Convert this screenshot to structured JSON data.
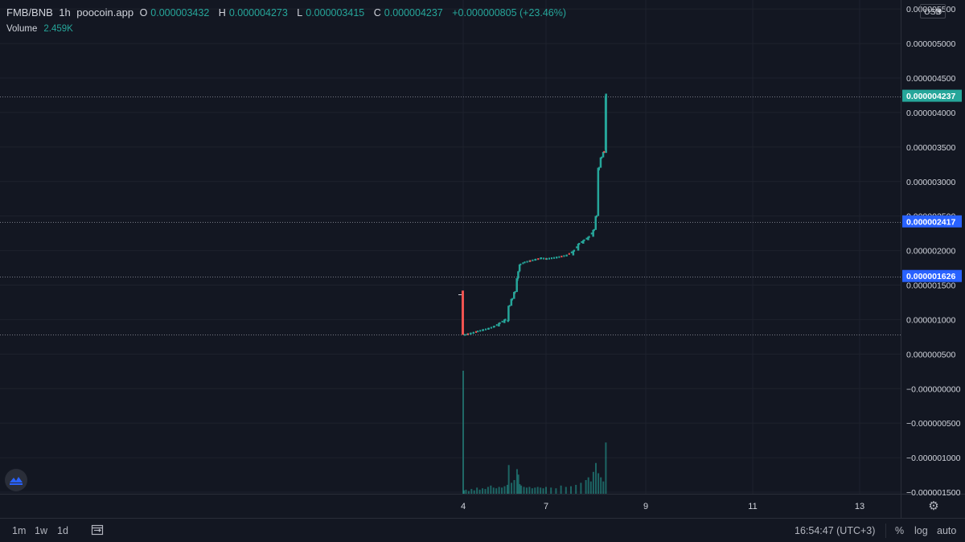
{
  "legend": {
    "symbol": "FMB/BNB",
    "interval": "1h",
    "source": "poocoin.app",
    "o_label": "O",
    "open": "0.000003432",
    "h_label": "H",
    "high": "0.000004273",
    "l_label": "L",
    "low": "0.000003415",
    "c_label": "C",
    "close": "0.000004237",
    "change": "+0.000000805 (+23.46%)"
  },
  "volume": {
    "label": "Volume",
    "value": "2.459K"
  },
  "currency": {
    "label": "USD",
    "chevron_icon": "chevron-down-icon"
  },
  "price_tags": [
    {
      "value": "0.000004237",
      "price": 4.237e-06,
      "color": "#26a69a"
    },
    {
      "value": "0.000002417",
      "price": 2.417e-06,
      "color": "#2962ff"
    },
    {
      "value": "0.000001626",
      "price": 1.626e-06,
      "color": "#2962ff"
    }
  ],
  "footer": {
    "timeframes": [
      "1m",
      "1w",
      "1d"
    ],
    "calendar_icon": "calendar-range-icon",
    "clock": "16:54:47 (UTC+3)",
    "percent_label": "%",
    "log_label": "log",
    "auto_label": "auto"
  },
  "chart_data": {
    "type": "candlestick",
    "x_tick_labels": [
      "4",
      "7",
      "9",
      "11",
      "13"
    ],
    "x_tick_days": [
      4,
      7,
      9,
      11,
      13
    ],
    "y_tick_labels": [
      "0.000005500",
      "0.000005000",
      "0.000004500",
      "0.000004000",
      "0.000003500",
      "0.000003000",
      "0.000002500",
      "0.000002000",
      "0.000001500",
      "0.000001000",
      "0.000000500",
      "−0.000000000",
      "−0.000000500",
      "−0.000001000",
      "−0.000001500"
    ],
    "y_tick_values": [
      5.5e-06,
      5e-06,
      4.5e-06,
      4e-06,
      3.5e-06,
      3e-06,
      2.5e-06,
      2e-06,
      1.5e-06,
      1e-06,
      5e-07,
      0,
      -5e-07,
      -1e-06,
      -1.5e-06
    ],
    "ylim": [
      -1.5e-06,
      5.7e-06
    ],
    "xlim": [
      0.0,
      13.9
    ],
    "dotted_levels": [
      4.237e-06,
      2.417e-06,
      1.626e-06,
      7.8e-07
    ],
    "grid": true,
    "up_color": "#26a69a",
    "down_color": "#ef5350",
    "close_series": [
      [
        4.0,
        1.4e-06
      ],
      [
        4.03,
        7.8e-07
      ],
      [
        4.15,
        7.9e-07
      ],
      [
        4.25,
        8e-07
      ],
      [
        4.35,
        8.1e-07
      ],
      [
        4.5,
        8.3e-07
      ],
      [
        4.7,
        8.5e-07
      ],
      [
        4.9,
        8.7e-07
      ],
      [
        5.1,
        9e-07
      ],
      [
        5.3,
        9.5e-07
      ],
      [
        5.5,
        1e-06
      ],
      [
        5.6,
        9.8e-07
      ],
      [
        5.65,
        1.2e-06
      ],
      [
        5.75,
        1.3e-06
      ],
      [
        5.85,
        1.4e-06
      ],
      [
        5.95,
        1.6e-06
      ],
      [
        6.0,
        1.7e-06
      ],
      [
        6.05,
        1.8e-06
      ],
      [
        6.2,
        1.83e-06
      ],
      [
        6.4,
        1.85e-06
      ],
      [
        6.6,
        1.87e-06
      ],
      [
        6.8,
        1.89e-06
      ],
      [
        7.0,
        1.88e-06
      ],
      [
        7.2,
        1.9e-06
      ],
      [
        7.4,
        1.93e-06
      ],
      [
        7.55,
        2e-06
      ],
      [
        7.65,
        2.1e-06
      ],
      [
        7.75,
        2.15e-06
      ],
      [
        7.85,
        2.2e-06
      ],
      [
        7.95,
        2.3e-06
      ],
      [
        8.0,
        2.5e-06
      ],
      [
        8.05,
        3.2e-06
      ],
      [
        8.1,
        3.35e-06
      ],
      [
        8.15,
        3.43e-06
      ],
      [
        8.18,
        3.46e-06
      ],
      [
        8.2,
        4.24e-06
      ]
    ],
    "volume_bars": [
      [
        4.0,
        0.18
      ],
      [
        4.03,
        0.005
      ],
      [
        4.1,
        0.006
      ],
      [
        4.2,
        0.004
      ],
      [
        4.3,
        0.007
      ],
      [
        4.4,
        0.005
      ],
      [
        4.5,
        0.009
      ],
      [
        4.6,
        0.006
      ],
      [
        4.7,
        0.008
      ],
      [
        4.8,
        0.007
      ],
      [
        4.9,
        0.01
      ],
      [
        5.0,
        0.012
      ],
      [
        5.1,
        0.009
      ],
      [
        5.2,
        0.008
      ],
      [
        5.3,
        0.01
      ],
      [
        5.4,
        0.009
      ],
      [
        5.5,
        0.011
      ],
      [
        5.6,
        0.013
      ],
      [
        5.65,
        0.042
      ],
      [
        5.75,
        0.016
      ],
      [
        5.85,
        0.02
      ],
      [
        5.95,
        0.036
      ],
      [
        6.0,
        0.028
      ],
      [
        6.05,
        0.014
      ],
      [
        6.1,
        0.012
      ],
      [
        6.2,
        0.01
      ],
      [
        6.3,
        0.009
      ],
      [
        6.4,
        0.01
      ],
      [
        6.5,
        0.008
      ],
      [
        6.6,
        0.009
      ],
      [
        6.7,
        0.01
      ],
      [
        6.8,
        0.009
      ],
      [
        6.9,
        0.008
      ],
      [
        7.0,
        0.01
      ],
      [
        7.1,
        0.009
      ],
      [
        7.2,
        0.008
      ],
      [
        7.3,
        0.012
      ],
      [
        7.4,
        0.01
      ],
      [
        7.5,
        0.011
      ],
      [
        7.6,
        0.013
      ],
      [
        7.7,
        0.016
      ],
      [
        7.8,
        0.02
      ],
      [
        7.85,
        0.024
      ],
      [
        7.9,
        0.018
      ],
      [
        7.95,
        0.032
      ],
      [
        8.0,
        0.045
      ],
      [
        8.05,
        0.03
      ],
      [
        8.1,
        0.024
      ],
      [
        8.15,
        0.018
      ],
      [
        8.2,
        0.075
      ]
    ]
  }
}
